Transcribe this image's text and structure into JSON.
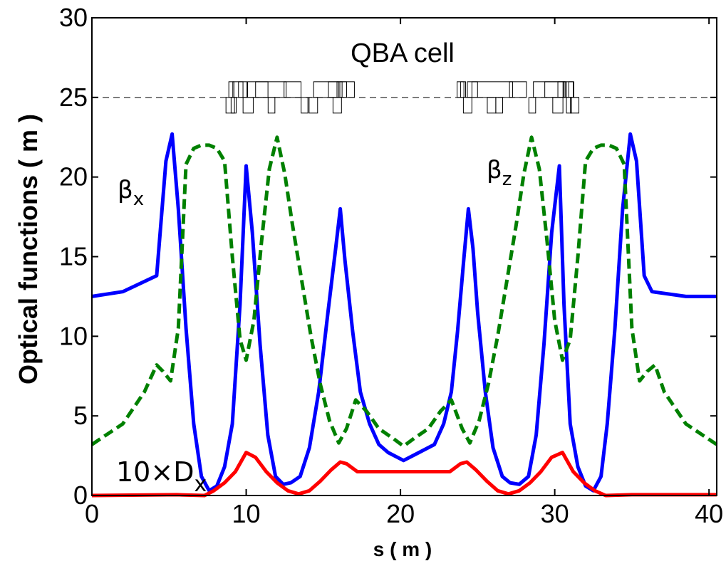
{
  "chart_data": {
    "type": "line",
    "title": "QBA cell",
    "xlabel": "s ( m )",
    "ylabel": "Optical functions ( m )",
    "xlim": [
      0,
      40.5
    ],
    "ylim": [
      0,
      30
    ],
    "x_ticks": [
      "0",
      "10",
      "20",
      "30",
      "40"
    ],
    "y_ticks": [
      "0",
      "5",
      "10",
      "15",
      "20",
      "25",
      "30"
    ],
    "grid": false,
    "series": [
      {
        "name": "βx",
        "color": "#0000ff",
        "style": "solid",
        "x": [
          0,
          2,
          4.2,
          4.8,
          5.2,
          5.6,
          6.1,
          6.6,
          7.1,
          7.6,
          8.1,
          8.6,
          9.1,
          9.6,
          10.0,
          10.4,
          10.9,
          11.4,
          11.9,
          12.4,
          12.9,
          13.5,
          14.1,
          14.7,
          15.3,
          15.8,
          16.1,
          16.4,
          16.9,
          17.4,
          18.0,
          18.6,
          19.2,
          20.2,
          21.2,
          22.2,
          22.8,
          23.3,
          23.7,
          24.1,
          24.4,
          24.7,
          25.0,
          25.5,
          26.0,
          26.6,
          27.1,
          27.7,
          28.3,
          28.8,
          29.3,
          29.8,
          30.3,
          30.6,
          31.0,
          31.5,
          32.0,
          32.5,
          33.0,
          33.4,
          33.9,
          34.4,
          34.9,
          35.3,
          35.8,
          36.3,
          38.5,
          40.5
        ],
        "y": [
          12.5,
          12.8,
          13.8,
          21.0,
          22.7,
          18.0,
          10.5,
          4.5,
          1.2,
          0.3,
          0.6,
          1.8,
          4.5,
          12.0,
          20.7,
          16.5,
          9.5,
          3.8,
          1.2,
          0.7,
          0.8,
          1.2,
          3.0,
          6.5,
          11.5,
          15.5,
          18.0,
          14.8,
          10.3,
          6.5,
          4.5,
          3.2,
          2.7,
          2.2,
          2.7,
          3.2,
          4.5,
          6.5,
          10.3,
          14.8,
          18.0,
          15.5,
          11.5,
          6.5,
          3.0,
          1.2,
          0.8,
          0.7,
          1.2,
          3.8,
          9.5,
          16.5,
          20.7,
          12.0,
          4.5,
          1.8,
          0.6,
          0.3,
          1.2,
          4.5,
          10.5,
          18.0,
          22.7,
          21.0,
          13.8,
          12.8,
          12.5,
          12.5
        ]
      },
      {
        "name": "βz",
        "color": "#008000",
        "style": "dashed",
        "x": [
          0,
          2,
          3.4,
          4.2,
          4.6,
          5.1,
          5.6,
          6.1,
          6.6,
          7.1,
          7.6,
          8.1,
          8.6,
          9.1,
          9.6,
          10.0,
          10.5,
          11.0,
          11.5,
          12.0,
          12.5,
          13.0,
          13.6,
          14.2,
          14.8,
          15.4,
          16.0,
          16.5,
          17.1,
          17.8,
          18.6,
          19.5,
          20.2,
          20.9,
          21.8,
          22.6,
          23.3,
          24.0,
          24.5,
          25.1,
          25.7,
          26.3,
          26.9,
          27.5,
          28.0,
          28.5,
          29.0,
          29.5,
          30.0,
          30.5,
          31.0,
          31.5,
          32.0,
          32.5,
          33.0,
          33.5,
          34.0,
          34.5,
          35.0,
          35.5,
          36.0,
          36.5,
          37.1,
          38.5,
          40.5
        ],
        "y": [
          3.2,
          4.5,
          6.5,
          8.2,
          7.8,
          7.2,
          10.5,
          20.8,
          21.8,
          22.0,
          22.0,
          21.8,
          21.0,
          15.0,
          9.8,
          8.5,
          11.0,
          16.0,
          20.5,
          22.5,
          20.2,
          17.0,
          13.5,
          10.0,
          7.0,
          4.7,
          3.3,
          4.2,
          6.0,
          5.3,
          4.2,
          3.6,
          3.1,
          3.6,
          4.2,
          5.3,
          6.0,
          4.2,
          3.3,
          4.7,
          7.0,
          10.0,
          13.5,
          17.0,
          20.2,
          22.5,
          20.5,
          16.0,
          11.0,
          8.5,
          9.8,
          15.0,
          21.0,
          21.8,
          22.0,
          22.0,
          21.8,
          20.8,
          10.5,
          7.2,
          7.8,
          8.2,
          6.5,
          4.5,
          3.2
        ]
      },
      {
        "name": "10×Dx",
        "color": "#ff0000",
        "style": "solid",
        "x": [
          0,
          5.5,
          7.3,
          7.9,
          8.6,
          9.3,
          10.0,
          10.6,
          11.3,
          12.0,
          12.7,
          13.4,
          14.1,
          14.8,
          15.5,
          16.1,
          16.5,
          17.2,
          18.0,
          20.2,
          22.4,
          23.2,
          23.9,
          24.3,
          24.9,
          25.6,
          26.3,
          27.0,
          27.7,
          28.4,
          29.1,
          29.8,
          30.5,
          31.2,
          31.9,
          32.6,
          33.3,
          35.0,
          40.5
        ],
        "y": [
          0.0,
          0.05,
          0.0,
          0.3,
          0.8,
          1.5,
          2.7,
          2.4,
          1.5,
          0.8,
          0.3,
          0.1,
          0.3,
          0.9,
          1.6,
          2.1,
          2.0,
          1.5,
          1.5,
          1.5,
          1.5,
          1.5,
          2.0,
          2.1,
          1.6,
          0.9,
          0.3,
          0.1,
          0.3,
          0.8,
          1.5,
          2.4,
          2.7,
          1.5,
          0.8,
          0.3,
          0.0,
          0.05,
          0.05
        ]
      }
    ],
    "annotations": {
      "beta_x": {
        "base": "β",
        "sub": "x"
      },
      "beta_z": {
        "base": "β",
        "sub": "z"
      },
      "dispersion": {
        "base": "10×D",
        "sub": "x"
      }
    },
    "lattice": {
      "baseline_y": 25,
      "range": [
        5,
        35.5
      ],
      "color": "#000000"
    }
  }
}
